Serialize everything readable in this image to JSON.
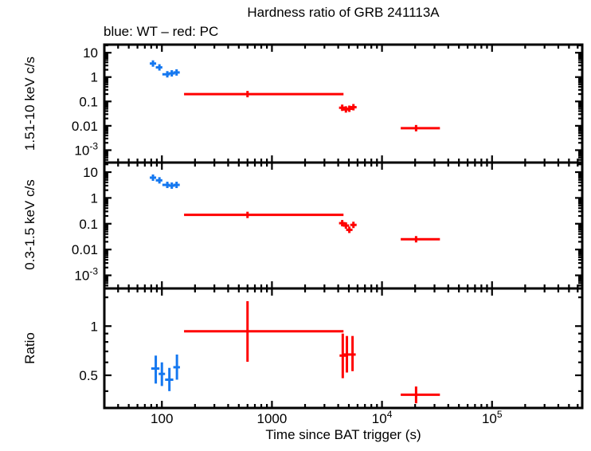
{
  "header": {
    "title": "Hardness ratio of GRB 241113A",
    "subtitle": "blue: WT – red: PC"
  },
  "chart_data": {
    "type": "scatter",
    "title": "Hardness ratio of GRB 241113A",
    "subtitle": "blue: WT – red: PC",
    "xlabel": "Time since BAT trigger (s)",
    "legend": [
      {
        "color_name": "blue",
        "series": "WT"
      },
      {
        "color_name": "red",
        "series": "PC"
      }
    ],
    "colors": {
      "wt": "#1578f0",
      "pc": "#ff0000",
      "axis": "#000000"
    },
    "x_axis": {
      "scale": "log",
      "min": 30,
      "max": 660000,
      "major_ticks": [
        {
          "value": 100,
          "label": "100"
        },
        {
          "value": 1000,
          "label": "1000"
        },
        {
          "value": 10000,
          "label": "10^4"
        },
        {
          "value": 100000,
          "label": "10^5"
        }
      ]
    },
    "panels": [
      {
        "id": "hard",
        "ylabel": "1.51-10 keV c/s",
        "yscale": "log",
        "ymin": 0.00031,
        "ymax": 21.5,
        "yticks": [
          {
            "value": 10,
            "label": "10"
          },
          {
            "value": 1,
            "label": "1"
          },
          {
            "value": 0.1,
            "label": "0.1"
          },
          {
            "value": 0.01,
            "label": "0.01"
          },
          {
            "value": 0.001,
            "label": "10^-3"
          }
        ],
        "series": [
          {
            "name": "WT",
            "mode": "wt",
            "points": [
              [
                83,
                78,
                88,
                3.6,
                3.3,
                3.95
              ],
              [
                95,
                88,
                101,
                2.5,
                2.3,
                2.72
              ],
              [
                112,
                101,
                118,
                1.3,
                1.2,
                1.42
              ],
              [
                123,
                118,
                129,
                1.42,
                1.31,
                1.54
              ],
              [
                136,
                129,
                144,
                1.55,
                1.43,
                1.68
              ]
            ]
          },
          {
            "name": "PC",
            "mode": "pc",
            "points": [
              [
                600,
                159,
                4470,
                0.2,
                0.185,
                0.216
              ],
              [
                4350,
                4200,
                4500,
                0.055,
                0.049,
                0.062
              ],
              [
                4700,
                4550,
                4850,
                0.047,
                0.042,
                0.053
              ],
              [
                5050,
                4900,
                5200,
                0.05,
                0.045,
                0.056
              ],
              [
                5500,
                5300,
                5700,
                0.058,
                0.052,
                0.065
              ],
              [
                20400,
                14800,
                33600,
                0.008,
                0.0072,
                0.0089
              ]
            ]
          }
        ]
      },
      {
        "id": "soft",
        "ylabel": "0.3-1.5 keV c/s",
        "yscale": "log",
        "ymin": 0.00031,
        "ymax": 23.5,
        "yticks": [
          {
            "value": 10,
            "label": "10"
          },
          {
            "value": 1,
            "label": "1"
          },
          {
            "value": 0.1,
            "label": "0.1"
          },
          {
            "value": 0.01,
            "label": "0.01"
          },
          {
            "value": 0.001,
            "label": "10^-3"
          }
        ],
        "series": [
          {
            "name": "WT",
            "mode": "wt",
            "points": [
              [
                83,
                78,
                88,
                6.1,
                5.6,
                6.6
              ],
              [
                95,
                88,
                101,
                4.8,
                4.4,
                5.2
              ],
              [
                112,
                101,
                118,
                3.2,
                2.95,
                3.45
              ],
              [
                123,
                118,
                129,
                3.0,
                2.78,
                3.25
              ],
              [
                136,
                129,
                144,
                3.2,
                2.95,
                3.45
              ]
            ]
          },
          {
            "name": "PC",
            "mode": "pc",
            "points": [
              [
                600,
                159,
                4470,
                0.22,
                0.2,
                0.24
              ],
              [
                4350,
                4200,
                4500,
                0.105,
                0.09,
                0.12
              ],
              [
                4700,
                4550,
                4850,
                0.085,
                0.073,
                0.098
              ],
              [
                5050,
                4900,
                5200,
                0.058,
                0.048,
                0.07
              ],
              [
                5500,
                5300,
                5700,
                0.09,
                0.078,
                0.104
              ],
              [
                20400,
                14800,
                33600,
                0.025,
                0.022,
                0.028
              ]
            ]
          }
        ]
      },
      {
        "id": "ratio",
        "ylabel": "Ratio",
        "yscale": "log",
        "ymin": 0.3155,
        "ymax": 1.7,
        "yticks": [
          {
            "value": 1,
            "label": "1"
          },
          {
            "value": 0.5,
            "label": "0.5"
          }
        ],
        "minor_yticks": [
          0.4,
          0.6,
          0.7,
          0.8,
          0.9,
          1.5
        ],
        "series": [
          {
            "name": "WT",
            "mode": "wt",
            "points": [
              [
                88,
                80,
                95,
                0.55,
                0.445,
                0.66
              ],
              [
                100,
                95,
                107,
                0.51,
                0.43,
                0.6
              ],
              [
                117,
                107,
                127,
                0.47,
                0.4,
                0.555
              ],
              [
                137,
                127,
                146,
                0.56,
                0.47,
                0.67
              ]
            ]
          },
          {
            "name": "PC",
            "mode": "pc",
            "points": [
              [
                600,
                159,
                4470,
                0.93,
                0.605,
                1.42
              ],
              [
                4400,
                4250,
                4550,
                0.66,
                0.48,
                0.9
              ],
              [
                4800,
                4650,
                4950,
                0.67,
                0.52,
                0.87
              ],
              [
                5400,
                5200,
                5600,
                0.67,
                0.53,
                0.87
              ],
              [
                20400,
                14800,
                33600,
                0.38,
                0.337,
                0.427
              ]
            ]
          }
        ]
      }
    ]
  }
}
